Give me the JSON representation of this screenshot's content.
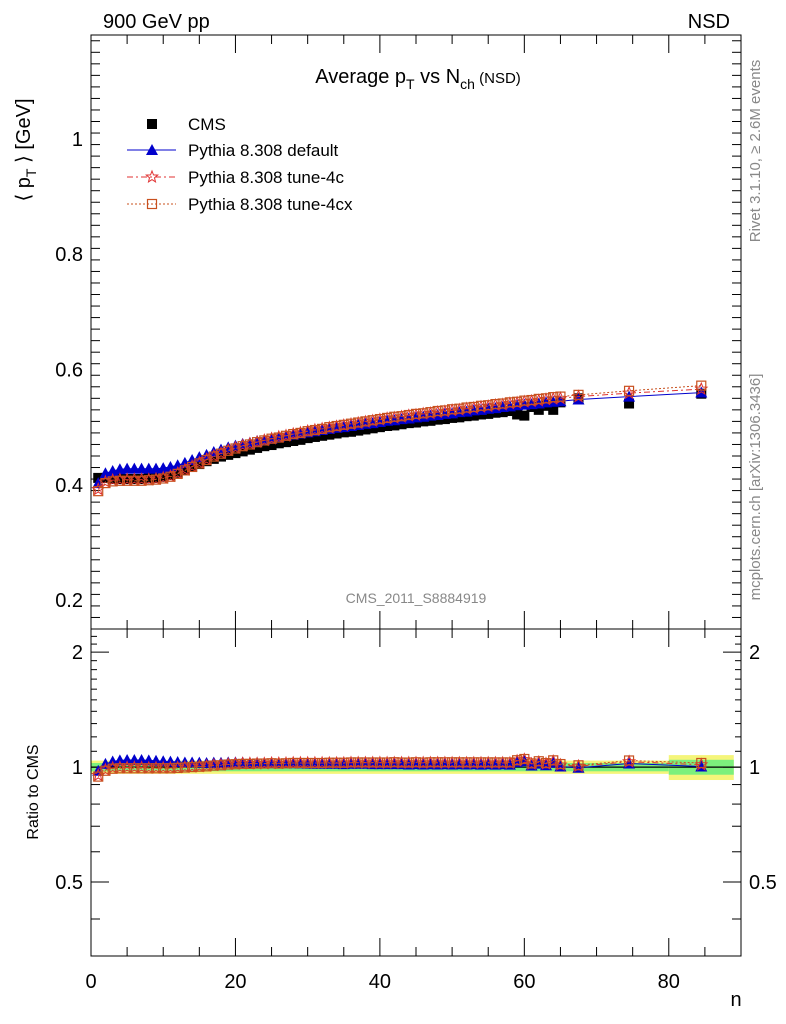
{
  "header": {
    "left_label": "900 GeV pp",
    "right_label": "NSD",
    "watermark": "CMS_2011_S8884919",
    "side_top": "Rivet 3.1.10, ≥ 2.6M events",
    "side_bottom": "mcplots.cern.ch [arXiv:1306.3436]"
  },
  "colors": {
    "cms": "#000000",
    "default": "#0000cc",
    "tune4c": "#e03030",
    "tune4cx": "#c8501e",
    "band_green": "#7cf07c",
    "band_yellow": "#f5f57a"
  },
  "chart_data": [
    {
      "type": "scatter",
      "title_main": "Average p",
      "title_sub1": "T",
      "title_mid": " vs N",
      "title_sub2": "ch",
      "title_tail": " (NSD)",
      "ylabel_left": "⟨ p",
      "ylabel_sub": "T",
      "ylabel_right": " ⟩ [GeV]",
      "xlim": [
        0,
        90
      ],
      "ylim": [
        0.15,
        1.18
      ],
      "y_ticks": [
        0.2,
        0.4,
        0.6,
        0.8,
        1.0
      ],
      "y_tick_labels": [
        "0.2",
        "0.4",
        "0.6",
        "0.8",
        "1"
      ],
      "legend": "top-left",
      "series": [
        {
          "name": "CMS",
          "marker": "square",
          "x": [
            1,
            2,
            3,
            4,
            5,
            6,
            7,
            8,
            9,
            10,
            11,
            12,
            13,
            14,
            15,
            16,
            17,
            18,
            19,
            20,
            21,
            22,
            23,
            24,
            25,
            26,
            27,
            28,
            29,
            30,
            31,
            32,
            33,
            34,
            35,
            36,
            37,
            38,
            39,
            40,
            41,
            42,
            43,
            44,
            45,
            46,
            47,
            48,
            49,
            50,
            51,
            52,
            53,
            54,
            55,
            56,
            57,
            58,
            59,
            60,
            61,
            62,
            63,
            64,
            65,
            67.5,
            74.5,
            84.5
          ],
          "y": [
            0.412,
            0.412,
            0.41,
            0.41,
            0.41,
            0.41,
            0.41,
            0.411,
            0.412,
            0.414,
            0.417,
            0.421,
            0.426,
            0.431,
            0.436,
            0.441,
            0.445,
            0.449,
            0.452,
            0.455,
            0.458,
            0.461,
            0.464,
            0.467,
            0.469,
            0.472,
            0.474,
            0.476,
            0.478,
            0.481,
            0.483,
            0.485,
            0.487,
            0.489,
            0.491,
            0.492,
            0.494,
            0.496,
            0.498,
            0.5,
            0.502,
            0.503,
            0.505,
            0.507,
            0.508,
            0.51,
            0.511,
            0.513,
            0.514,
            0.516,
            0.517,
            0.519,
            0.52,
            0.522,
            0.523,
            0.525,
            0.526,
            0.528,
            0.522,
            0.52,
            0.535,
            0.53,
            0.537,
            0.53,
            0.543,
            0.55,
            0.541,
            0.558
          ]
        },
        {
          "name": "Pythia 8.308 default",
          "marker": "triangle",
          "x": [
            1,
            2,
            3,
            4,
            5,
            6,
            7,
            8,
            9,
            10,
            11,
            12,
            13,
            14,
            15,
            16,
            17,
            18,
            19,
            20,
            21,
            22,
            23,
            24,
            25,
            26,
            27,
            28,
            29,
            30,
            31,
            32,
            33,
            34,
            35,
            36,
            37,
            38,
            39,
            40,
            41,
            42,
            43,
            44,
            45,
            46,
            47,
            48,
            49,
            50,
            51,
            52,
            53,
            54,
            55,
            56,
            57,
            58,
            59,
            60,
            61,
            62,
            63,
            64,
            65,
            67.5,
            74.5,
            84.5
          ],
          "y": [
            0.403,
            0.42,
            0.424,
            0.427,
            0.428,
            0.428,
            0.428,
            0.428,
            0.428,
            0.429,
            0.431,
            0.434,
            0.438,
            0.443,
            0.448,
            0.452,
            0.457,
            0.461,
            0.465,
            0.468,
            0.471,
            0.473,
            0.476,
            0.478,
            0.48,
            0.483,
            0.485,
            0.487,
            0.489,
            0.491,
            0.493,
            0.495,
            0.497,
            0.499,
            0.5,
            0.502,
            0.504,
            0.506,
            0.507,
            0.509,
            0.511,
            0.512,
            0.514,
            0.515,
            0.517,
            0.518,
            0.52,
            0.521,
            0.523,
            0.524,
            0.526,
            0.527,
            0.529,
            0.53,
            0.532,
            0.533,
            0.535,
            0.536,
            0.538,
            0.539,
            0.54,
            0.541,
            0.543,
            0.544,
            0.545,
            0.548,
            0.553,
            0.56
          ]
        },
        {
          "name": "Pythia 8.308 tune-4c",
          "marker": "star",
          "x": [
            1,
            2,
            3,
            4,
            5,
            6,
            7,
            8,
            9,
            10,
            11,
            12,
            13,
            14,
            15,
            16,
            17,
            18,
            19,
            20,
            21,
            22,
            23,
            24,
            25,
            26,
            27,
            28,
            29,
            30,
            31,
            32,
            33,
            34,
            35,
            36,
            37,
            38,
            39,
            40,
            41,
            42,
            43,
            44,
            45,
            46,
            47,
            48,
            49,
            50,
            51,
            52,
            53,
            54,
            55,
            56,
            57,
            58,
            59,
            60,
            61,
            62,
            63,
            64,
            65,
            67.5,
            74.5,
            84.5
          ],
          "y": [
            0.392,
            0.405,
            0.408,
            0.409,
            0.409,
            0.409,
            0.409,
            0.409,
            0.41,
            0.412,
            0.415,
            0.42,
            0.426,
            0.432,
            0.438,
            0.444,
            0.45,
            0.455,
            0.46,
            0.464,
            0.468,
            0.471,
            0.474,
            0.477,
            0.48,
            0.483,
            0.485,
            0.488,
            0.49,
            0.493,
            0.495,
            0.497,
            0.499,
            0.501,
            0.503,
            0.505,
            0.507,
            0.509,
            0.511,
            0.513,
            0.515,
            0.516,
            0.518,
            0.52,
            0.521,
            0.523,
            0.524,
            0.526,
            0.527,
            0.529,
            0.53,
            0.532,
            0.533,
            0.535,
            0.536,
            0.538,
            0.539,
            0.541,
            0.542,
            0.544,
            0.545,
            0.546,
            0.548,
            0.549,
            0.55,
            0.553,
            0.559,
            0.566
          ]
        },
        {
          "name": "Pythia 8.308 tune-4cx",
          "marker": "open-square",
          "x": [
            1,
            2,
            3,
            4,
            5,
            6,
            7,
            8,
            9,
            10,
            11,
            12,
            13,
            14,
            15,
            16,
            17,
            18,
            19,
            20,
            21,
            22,
            23,
            24,
            25,
            26,
            27,
            28,
            29,
            30,
            31,
            32,
            33,
            34,
            35,
            36,
            37,
            38,
            39,
            40,
            41,
            42,
            43,
            44,
            45,
            46,
            47,
            48,
            49,
            50,
            51,
            52,
            53,
            54,
            55,
            56,
            57,
            58,
            59,
            60,
            61,
            62,
            63,
            64,
            65,
            67.5,
            74.5,
            84.5
          ],
          "y": [
            0.389,
            0.403,
            0.406,
            0.407,
            0.407,
            0.407,
            0.407,
            0.408,
            0.409,
            0.411,
            0.414,
            0.419,
            0.425,
            0.431,
            0.437,
            0.443,
            0.449,
            0.454,
            0.459,
            0.463,
            0.467,
            0.47,
            0.474,
            0.477,
            0.48,
            0.482,
            0.485,
            0.488,
            0.49,
            0.493,
            0.495,
            0.497,
            0.5,
            0.502,
            0.504,
            0.506,
            0.508,
            0.51,
            0.512,
            0.514,
            0.516,
            0.518,
            0.519,
            0.521,
            0.523,
            0.524,
            0.526,
            0.528,
            0.529,
            0.531,
            0.532,
            0.534,
            0.535,
            0.537,
            0.538,
            0.54,
            0.541,
            0.543,
            0.544,
            0.546,
            0.547,
            0.549,
            0.55,
            0.552,
            0.553,
            0.556,
            0.563,
            0.572
          ]
        }
      ]
    },
    {
      "type": "scatter",
      "ylabel": "Ratio to CMS",
      "xlabel": "n",
      "xlim": [
        0,
        90
      ],
      "ylim": [
        0.32,
        2.3
      ],
      "x_ticks": [
        0,
        20,
        40,
        60,
        80
      ],
      "x_tick_labels": [
        "0",
        "20",
        "40",
        "60",
        "80"
      ],
      "y_ticks": [
        0.5,
        1,
        2
      ],
      "y_tick_labels": [
        "0.5",
        "1",
        "2"
      ],
      "bands": [
        {
          "x0": 0,
          "x1": 80,
          "green": 0.025,
          "yellow": 0.04
        },
        {
          "x0": 80,
          "x1": 89,
          "green": 0.045,
          "yellow": 0.075
        }
      ]
    }
  ]
}
